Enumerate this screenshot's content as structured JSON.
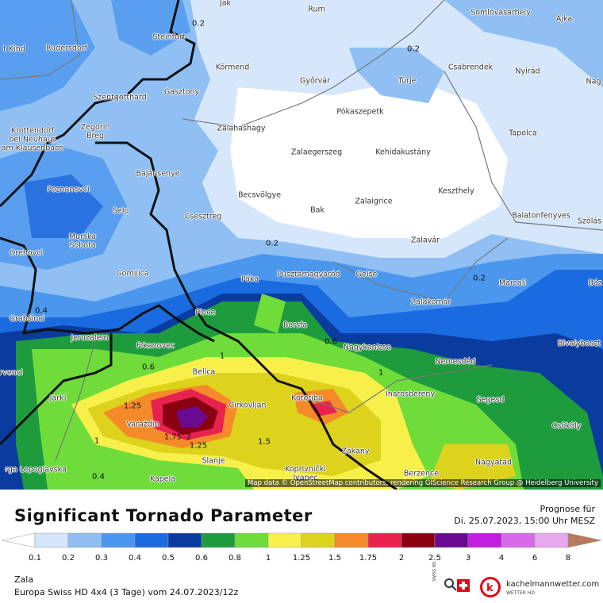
{
  "map": {
    "places": [
      {
        "label": "Jak"
      },
      {
        "label": "Rum"
      },
      {
        "label": "Somlóvásárhely"
      },
      {
        "label": "Ajka"
      },
      {
        "label": "Steinfurt"
      },
      {
        "label": "t Kind"
      },
      {
        "label": "Rudersdorf"
      },
      {
        "label": "Körmend"
      },
      {
        "label": "Csabrendek"
      },
      {
        "label": "Nyirád"
      },
      {
        "label": "Győrvár"
      },
      {
        "label": "Türje"
      },
      {
        "label": "Nag"
      },
      {
        "label": "Gasztony"
      },
      {
        "label": "Szentgotthárd"
      },
      {
        "label": "Pókaszepetk"
      },
      {
        "label": "Zalahashagy"
      },
      {
        "label": "Tapolca"
      },
      {
        "label": "Krottendorf\nbei Neuhaus\nam Klausenbach"
      },
      {
        "label": "Zegorin\nBreg"
      },
      {
        "label": "Zalaegerszeg"
      },
      {
        "label": "Kehidakustány"
      },
      {
        "label": "Bajánsenye"
      },
      {
        "label": "Poznanovci"
      },
      {
        "label": "Keszthely"
      },
      {
        "label": "Becsvölgye"
      },
      {
        "label": "Zalaigrice"
      },
      {
        "label": "Selo"
      },
      {
        "label": "Bak"
      },
      {
        "label": "Csesztreg"
      },
      {
        "label": "Balatonfenyves"
      },
      {
        "label": "Szólás"
      },
      {
        "label": "Murska\nSobota"
      },
      {
        "label": "Zalavár"
      },
      {
        "label": "Orehovci"
      },
      {
        "label": "Gomilica"
      },
      {
        "label": "Pusztamagyaród"
      },
      {
        "label": "Gelse"
      },
      {
        "label": "Páka"
      },
      {
        "label": "Marcali"
      },
      {
        "label": "Báz"
      },
      {
        "label": "Zalakomár"
      },
      {
        "label": "Grabšinci"
      },
      {
        "label": "Pince"
      },
      {
        "label": "Borsfa"
      },
      {
        "label": "Jeruzalem"
      },
      {
        "label": "Bivalybaszt"
      },
      {
        "label": "Frkanovec"
      },
      {
        "label": "Nagykanizsa"
      },
      {
        "label": "rvenci"
      },
      {
        "label": "Nemesdéd"
      },
      {
        "label": "Belica"
      },
      {
        "label": "Iharosberény"
      },
      {
        "label": "Jarki"
      },
      {
        "label": "Kotoriba"
      },
      {
        "label": "Segesd"
      },
      {
        "label": "Cirkovljan"
      },
      {
        "label": "Varaždin"
      },
      {
        "label": "Csököly"
      },
      {
        "label": "Zákány"
      },
      {
        "label": "Slanje"
      },
      {
        "label": "Nagyatád"
      },
      {
        "label": "rga Lepoglavska"
      },
      {
        "label": "Koprivnički\nIvanec"
      },
      {
        "label": "Berzence"
      },
      {
        "label": "Kapela"
      }
    ],
    "contour_labels": [
      "0.2",
      "0.2",
      "0.2",
      "0.2",
      "0.4",
      "0.6",
      "0.6",
      "1",
      "1",
      "1.25",
      "1.75",
      "2",
      "1",
      "1.5",
      "1.25",
      "0.4"
    ],
    "attribution": "Map data © OpenStreetMap contributors, rendering GIScience Research Group @ Heidelberg University"
  },
  "legend": {
    "title": "Significant Tornado Parameter",
    "forecast_label": "Prognose für",
    "forecast_time": "Di. 25.07.2023, 15:00 Uhr MESZ",
    "labels": [
      "0.1",
      "0.2",
      "0.3",
      "0.4",
      "0.5",
      "0.6",
      "0.8",
      "1",
      "1.25",
      "1.5",
      "1.75",
      "2",
      "2.5",
      "3",
      "4",
      "6",
      "8"
    ],
    "colors": [
      "#ffffff",
      "#d4e6fb",
      "#8fbff3",
      "#4b97ee",
      "#1a6be0",
      "#0a3b9e",
      "#1e9b3c",
      "#6fdc3a",
      "#f7f04a",
      "#ddd21c",
      "#f58a2a",
      "#e8224e",
      "#8a0010",
      "#6a0a90",
      "#c21ee0",
      "#d86ae8",
      "#e8a8f0",
      "#b87a5a"
    ]
  },
  "footer": {
    "region": "Zala",
    "model": "Europa Swiss HD 4x4 (3 Tage) vom 24.07.2023/12z",
    "swiss": "SWISS HD",
    "brand": "kachelmannwetter.com",
    "brand_sub": "WETTER HD"
  }
}
